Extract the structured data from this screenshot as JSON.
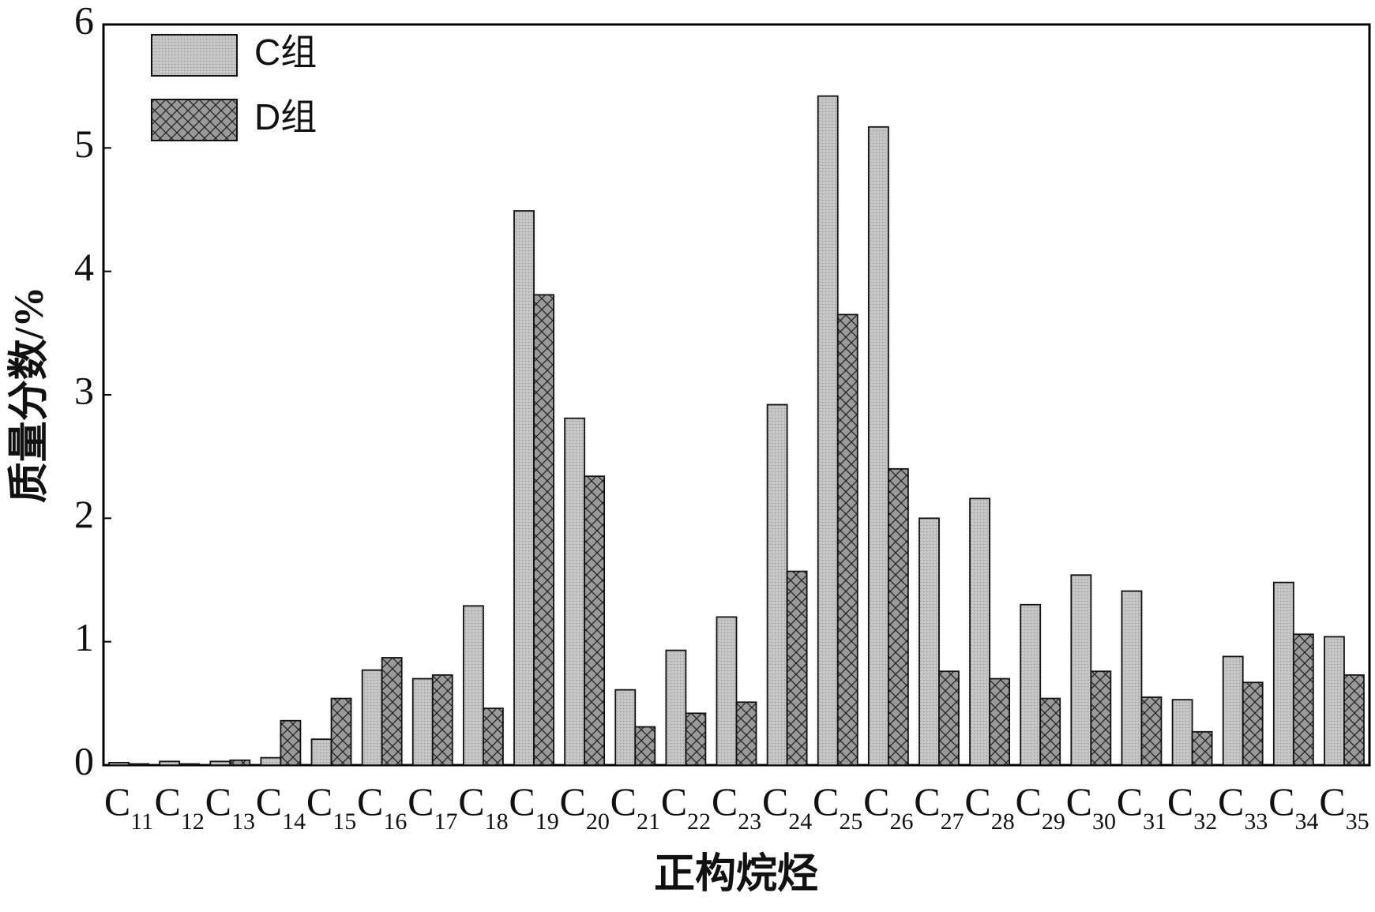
{
  "chart_data": {
    "type": "bar",
    "xlabel": "正构烷烃",
    "ylabel": "质量分数/%",
    "categories": [
      "C11",
      "C12",
      "C13",
      "C14",
      "C15",
      "C16",
      "C17",
      "C18",
      "C19",
      "C20",
      "C21",
      "C22",
      "C23",
      "C24",
      "C25",
      "C26",
      "C27",
      "C28",
      "C29",
      "C30",
      "C31",
      "C32",
      "C33",
      "C34",
      "C35"
    ],
    "series": [
      {
        "name": "C组",
        "color": "#c4c4c4",
        "values": [
          0.02,
          0.03,
          0.03,
          0.06,
          0.21,
          0.77,
          0.7,
          1.29,
          4.49,
          2.81,
          0.61,
          0.93,
          1.2,
          2.92,
          5.42,
          5.17,
          2.0,
          2.16,
          1.3,
          1.54,
          1.41,
          0.53,
          0.88,
          1.48,
          1.04
        ]
      },
      {
        "name": "D组",
        "color": "#9a9a9a",
        "values": [
          0.01,
          0.01,
          0.04,
          0.36,
          0.54,
          0.87,
          0.73,
          0.46,
          3.81,
          2.34,
          0.31,
          0.42,
          0.51,
          1.57,
          3.65,
          2.4,
          0.76,
          0.7,
          0.54,
          0.76,
          0.55,
          0.27,
          0.67,
          1.06,
          0.73
        ]
      }
    ],
    "ylim": [
      0,
      6
    ],
    "yticks": [
      0,
      1,
      2,
      3,
      4,
      5,
      6
    ],
    "grid": false,
    "legend": "upper-left"
  }
}
